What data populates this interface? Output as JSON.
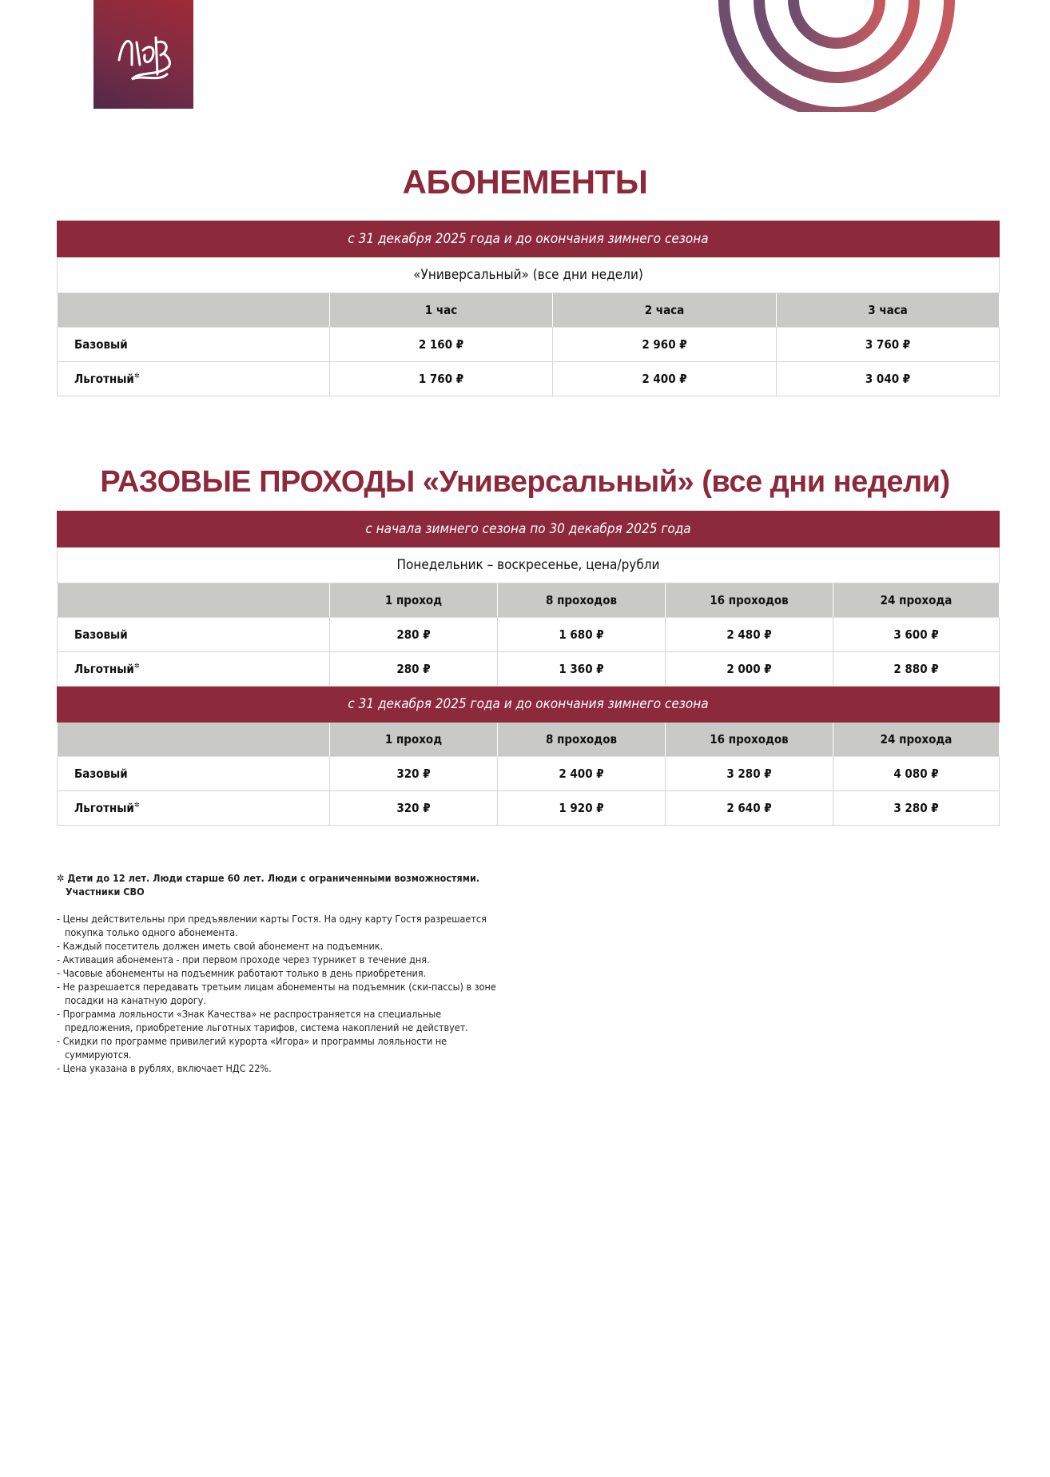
{
  "logo": {
    "text": "Игора"
  },
  "colors": {
    "accent": "#8c2a3c",
    "header_gray": "#c9c9c8"
  },
  "section1": {
    "title": "АБОНЕМЕНТЫ",
    "period": "с 31 декабря 2025 года и до окончания зимнего сезона",
    "subtitle": "«Универсальный» (все дни недели)",
    "columns": [
      "",
      "1 час",
      "2 часа",
      "3 часа"
    ],
    "rows": [
      {
        "label": "Базовый",
        "mark": "",
        "values": [
          "2 160 ₽",
          "2 960 ₽",
          "3 760 ₽"
        ]
      },
      {
        "label": "Льготный",
        "mark": "✲",
        "values": [
          "1 760 ₽",
          "2 400 ₽",
          "3 040 ₽"
        ]
      }
    ]
  },
  "section2": {
    "title": "РАЗОВЫЕ ПРОХОДЫ «Универсальный» (все дни недели)",
    "blocks": [
      {
        "period": "с начала зимнего сезона по 30 декабря 2025 года",
        "subtitle": "Понедельник – воскресенье, цена/рубли",
        "columns": [
          "",
          "1 проход",
          "8 проходов",
          "16 проходов",
          "24 прохода"
        ],
        "rows": [
          {
            "label": "Базовый",
            "mark": "",
            "values": [
              "280 ₽",
              "1 680 ₽",
              "2 480 ₽",
              "3 600 ₽"
            ]
          },
          {
            "label": "Льготный",
            "mark": "✲",
            "values": [
              "280 ₽",
              "1 360 ₽",
              "2 000 ₽",
              "2 880 ₽"
            ]
          }
        ]
      },
      {
        "period": "с 31 декабря 2025 года и до окончания зимнего сезона",
        "columns": [
          "",
          "1 проход",
          "8 проходов",
          "16 проходов",
          "24 прохода"
        ],
        "rows": [
          {
            "label": "Базовый",
            "mark": "",
            "values": [
              "320 ₽",
              "2 400 ₽",
              "3 280 ₽",
              "4 080 ₽"
            ]
          },
          {
            "label": "Льготный",
            "mark": "✲",
            "values": [
              "320 ₽",
              "1 920 ₽",
              "2 640 ₽",
              "3 280 ₽"
            ]
          }
        ]
      }
    ]
  },
  "notes": {
    "footnote": "✲ Дети до 12 лет. Люди старше 60 лет. Люди с ограниченными возможностями. Участники СВО",
    "items": [
      "- Цены действительны при предъявлении карты Гостя. На одну карту Гостя разрешается покупка только одного абонемента.",
      "- Каждый посетитель должен иметь свой абонемент на подъемник.",
      "- Активация абонемента - при первом проходе через турникет в течение дня.",
      "- Часовые абонементы на подъемник работают только в день приобретения.",
      "- Не разрешается передавать третьим лицам абонементы на подъемник (ски-пассы) в зоне посадки на канатную дорогу.",
      "- Программа лояльности «Знак Качества» не распространяется на специальные предложения, приобретение льготных тарифов, система накоплений не действует.",
      "- Скидки по программе привилегий курорта «Игора» и программы лояльности не суммируются.",
      "- Цена указана в рублях, включает НДС 22%."
    ]
  }
}
